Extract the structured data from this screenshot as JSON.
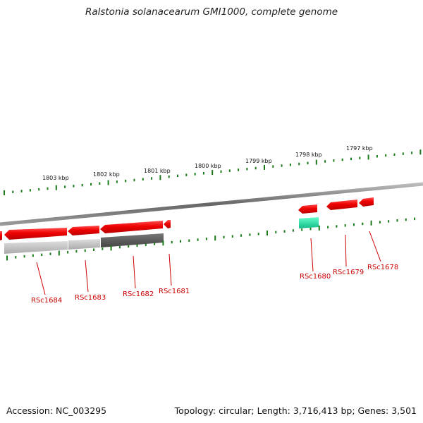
{
  "title": "Ralstonia solanacearum GMI1000, complete genome",
  "footer": {
    "accession": "Accession: NC_003295",
    "summary": "Topology: circular; Length: 3,716,413 bp; Genes: 3,501"
  },
  "scale_labels": [
    "1803 kbp",
    "1802 kbp",
    "1801 kbp",
    "1800 kbp",
    "1799 kbp",
    "1798 kbp",
    "1797 kbp"
  ],
  "genes": [
    {
      "label": "RSc1684",
      "strand": "reverse",
      "color": "#ee0000"
    },
    {
      "label": "RSc1683",
      "strand": "reverse",
      "color": "#ee0000"
    },
    {
      "label": "RSc1682",
      "strand": "reverse",
      "color": "#ee0000"
    },
    {
      "label": "RSc1681",
      "strand": "reverse",
      "color": "#ee0000"
    },
    {
      "label": "RSc1680",
      "strand": "reverse",
      "color": "#ee0000"
    },
    {
      "label": "RSc1679",
      "strand": "reverse",
      "color": "#ee0000"
    },
    {
      "label": "RSc1678",
      "strand": "reverse",
      "color": "#ee0000"
    }
  ],
  "colors": {
    "gene": "#ee0000",
    "label": "#cc0000",
    "tick": "#1a7a1a",
    "backbone": "#777777",
    "highlight": "#22dd99"
  }
}
